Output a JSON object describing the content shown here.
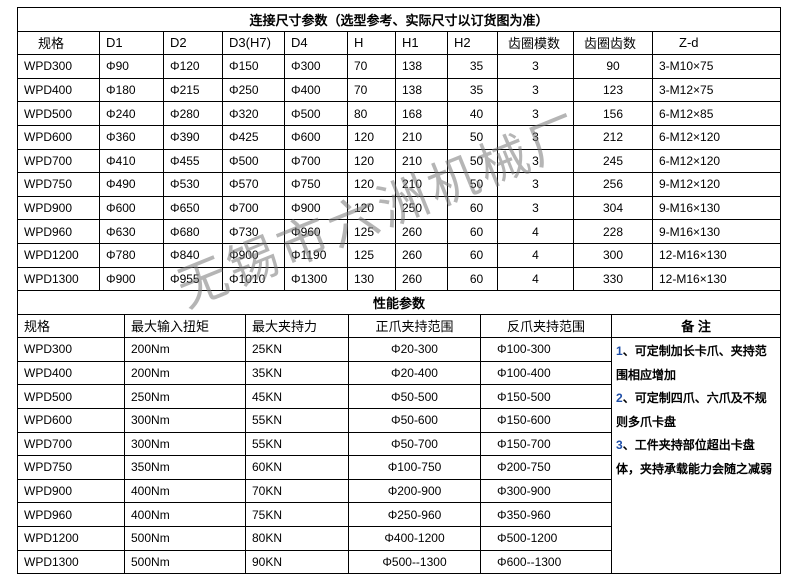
{
  "connection": {
    "title": "连接尺寸参数（选型参考、实际尺寸以订货图为准）",
    "headers": [
      "规格",
      "D1",
      "D2",
      "D3(H7)",
      "D4",
      "H",
      "H1",
      "H2",
      "齿圈模数",
      "齿圈齿数",
      "Z-d"
    ],
    "rows": [
      [
        "WPD300",
        "Φ90",
        "Φ120",
        "Φ150",
        "Φ300",
        "70",
        "138",
        "35",
        "3",
        "90",
        "3-M10×75"
      ],
      [
        "WPD400",
        "Φ180",
        "Φ215",
        "Φ250",
        "Φ400",
        "70",
        "138",
        "35",
        "3",
        "123",
        "3-M12×75"
      ],
      [
        "WPD500",
        "Φ240",
        "Φ280",
        "Φ320",
        "Φ500",
        "80",
        "168",
        "40",
        "3",
        "156",
        "6-M12×85"
      ],
      [
        "WPD600",
        "Φ360",
        "Φ390",
        "Φ425",
        "Φ600",
        "120",
        "210",
        "50",
        "3",
        "212",
        "6-M12×120"
      ],
      [
        "WPD700",
        "Φ410",
        "Φ455",
        "Φ500",
        "Φ700",
        "120",
        "210",
        "50",
        "3",
        "245",
        "6-M12×120"
      ],
      [
        "WPD750",
        "Φ490",
        "Φ530",
        "Φ570",
        "Φ750",
        "120",
        "210",
        "50",
        "3",
        "256",
        "9-M12×120"
      ],
      [
        "WPD900",
        "Φ600",
        "Φ650",
        "Φ700",
        "Φ900",
        "120",
        "250",
        "60",
        "3",
        "304",
        "9-M16×130"
      ],
      [
        "WPD960",
        "Φ630",
        "Φ680",
        "Φ730",
        "Φ960",
        "125",
        "260",
        "60",
        "4",
        "228",
        "9-M16×130"
      ],
      [
        "WPD1200",
        "Φ780",
        "Φ840",
        "Φ900",
        "Φ1190",
        "125",
        "260",
        "60",
        "4",
        "300",
        "12-M16×130"
      ],
      [
        "WPD1300",
        "Φ900",
        "Φ955",
        "Φ1010",
        "Φ1300",
        "130",
        "260",
        "60",
        "4",
        "330",
        "12-M16×130"
      ]
    ]
  },
  "performance": {
    "title": "性能参数",
    "headers": [
      "规格",
      "最大输入扭矩",
      "最大夹持力",
      "正爪夹持范围",
      "反爪夹持范围",
      "备 注"
    ],
    "rows": [
      [
        "WPD300",
        "200Nm",
        "25KN",
        "Φ20-300",
        "Φ100-300"
      ],
      [
        "WPD400",
        "200Nm",
        "35KN",
        "Φ20-400",
        "Φ100-400"
      ],
      [
        "WPD500",
        "250Nm",
        "45KN",
        "Φ50-500",
        "Φ150-500"
      ],
      [
        "WPD600",
        "300Nm",
        "55KN",
        "Φ50-600",
        "Φ150-600"
      ],
      [
        "WPD700",
        "300Nm",
        "55KN",
        "Φ50-700",
        "Φ150-700"
      ],
      [
        "WPD750",
        "350Nm",
        "60KN",
        "Φ100-750",
        "Φ200-750"
      ],
      [
        "WPD900",
        "400Nm",
        "70KN",
        "Φ200-900",
        "Φ300-900"
      ],
      [
        "WPD960",
        "400Nm",
        "75KN",
        "Φ250-960",
        "Φ350-960"
      ],
      [
        "WPD1200",
        "500Nm",
        "80KN",
        "Φ400-1200",
        "Φ500-1200"
      ],
      [
        "WPD1300",
        "500Nm",
        "90KN",
        "Φ500--1300",
        "Φ600--1300"
      ]
    ],
    "remarks": [
      {
        "num": "1",
        "text": "、可定制加长卡爪、夹持范围相应增加"
      },
      {
        "num": "2",
        "text": "、可定制四爪、六爪及不规则多爪卡盘"
      },
      {
        "num": "3",
        "text": "、工件夹持部位超出卡盘体，夹持承载能力会随之减弱"
      }
    ]
  },
  "watermark": "无锡市六洲机械厂"
}
